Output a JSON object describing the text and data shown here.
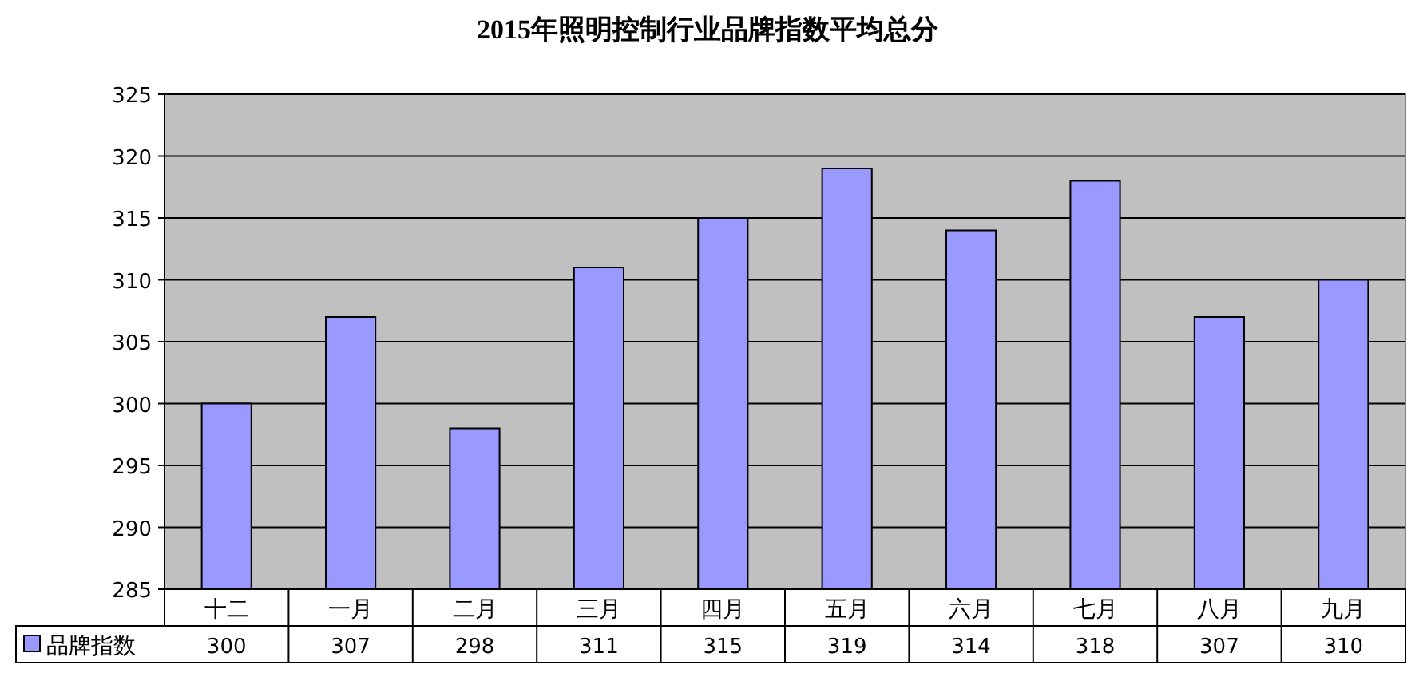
{
  "chart_data": {
    "type": "bar",
    "title": "2015年照明控制行业品牌指数平均总分",
    "categories": [
      "十二",
      "一月",
      "二月",
      "三月",
      "四月",
      "五月",
      "六月",
      "七月",
      "八月",
      "九月"
    ],
    "series": [
      {
        "name": "品牌指数",
        "color": "#9999ff",
        "values": [
          300,
          307,
          298,
          311,
          315,
          319,
          314,
          318,
          307,
          310
        ]
      }
    ],
    "ylim": [
      285,
      325
    ],
    "yticks": [
      285,
      290,
      295,
      300,
      305,
      310,
      315,
      320,
      325
    ],
    "grid": "y",
    "legend": "bottom",
    "data_labels": true
  }
}
